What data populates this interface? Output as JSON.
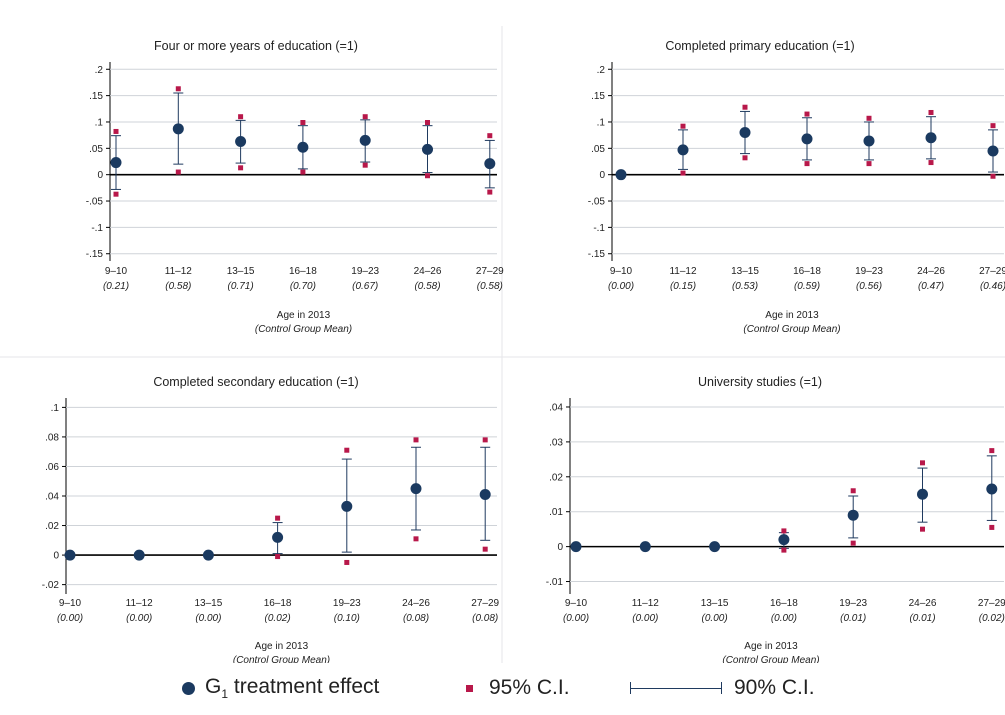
{
  "chart_data": [
    {
      "type": "scatter",
      "title": "Four or more years of education (=1)",
      "xlabel": "Age in 2013",
      "xsublabel": "(Control Group Mean)",
      "categories": [
        "9–10",
        "11–12",
        "13–15",
        "16–18",
        "19–23",
        "24–26",
        "27–29"
      ],
      "control_means": [
        "(0.21)",
        "(0.58)",
        "(0.71)",
        "(0.70)",
        "(0.67)",
        "(0.58)",
        "(0.58)"
      ],
      "ylim": [
        -0.16,
        0.21
      ],
      "yticks": [
        0.2,
        0.15,
        0.1,
        0.05,
        0,
        -0.05,
        -0.1,
        -0.15
      ],
      "ytick_labels": [
        ".2",
        ".15",
        ".1",
        ".05",
        "0",
        "-.05",
        "-.1",
        "-.15"
      ],
      "grid": true,
      "series": [
        {
          "name": "G1 treatment effect",
          "values": [
            0.023,
            0.087,
            0.063,
            0.052,
            0.065,
            0.048,
            0.021
          ]
        },
        {
          "name": "95% C.I.",
          "lower": [
            -0.037,
            0.005,
            0.013,
            0.005,
            0.018,
            -0.002,
            -0.033
          ],
          "upper": [
            0.082,
            0.163,
            0.11,
            0.099,
            0.11,
            0.099,
            0.074
          ]
        },
        {
          "name": "90% C.I.",
          "lower": [
            -0.028,
            0.02,
            0.022,
            0.011,
            0.024,
            0.004,
            -0.025
          ],
          "upper": [
            0.074,
            0.155,
            0.103,
            0.093,
            0.104,
            0.093,
            0.065
          ]
        }
      ]
    },
    {
      "type": "scatter",
      "title": "Completed primary education (=1)",
      "xlabel": "Age in 2013",
      "xsublabel": "(Control Group Mean)",
      "categories": [
        "9–10",
        "11–12",
        "13–15",
        "16–18",
        "19–23",
        "24–26",
        "27–29"
      ],
      "control_means": [
        "(0.00)",
        "(0.15)",
        "(0.53)",
        "(0.59)",
        "(0.56)",
        "(0.47)",
        "(0.46)"
      ],
      "ylim": [
        -0.16,
        0.21
      ],
      "yticks": [
        0.2,
        0.15,
        0.1,
        0.05,
        0,
        -0.05,
        -0.1,
        -0.15
      ],
      "ytick_labels": [
        ".2",
        ".15",
        ".1",
        ".05",
        "0",
        "-.05",
        "-.1",
        "-.15"
      ],
      "grid": true,
      "series": [
        {
          "name": "G1 treatment effect",
          "values": [
            0.0,
            0.047,
            0.08,
            0.068,
            0.064,
            0.07,
            0.045
          ]
        },
        {
          "name": "95% C.I.",
          "lower": [
            0.0,
            0.003,
            0.032,
            0.021,
            0.021,
            0.023,
            -0.003
          ],
          "upper": [
            0.0,
            0.092,
            0.128,
            0.115,
            0.107,
            0.118,
            0.093
          ]
        },
        {
          "name": "90% C.I.",
          "lower": [
            0.0,
            0.01,
            0.04,
            0.028,
            0.028,
            0.03,
            0.005
          ],
          "upper": [
            0.0,
            0.085,
            0.12,
            0.108,
            0.1,
            0.11,
            0.085
          ]
        }
      ]
    },
    {
      "type": "scatter",
      "title": "Completed secondary education (=1)",
      "xlabel": "Age in 2013",
      "xsublabel": "(Control Group Mean)",
      "categories": [
        "9–10",
        "11–12",
        "13–15",
        "16–18",
        "19–23",
        "24–26",
        "27–29"
      ],
      "control_means": [
        "(0.00)",
        "(0.00)",
        "(0.00)",
        "(0.02)",
        "(0.10)",
        "(0.08)",
        "(0.08)"
      ],
      "ylim": [
        -0.025,
        0.105
      ],
      "yticks": [
        0.1,
        0.08,
        0.06,
        0.04,
        0.02,
        0,
        -0.02
      ],
      "ytick_labels": [
        ".1",
        ".08",
        ".06",
        ".04",
        ".02",
        "0",
        "-.02"
      ],
      "grid": true,
      "series": [
        {
          "name": "G1 treatment effect",
          "values": [
            0.0,
            0.0,
            0.0,
            0.012,
            0.033,
            0.045,
            0.041
          ]
        },
        {
          "name": "95% C.I.",
          "lower": [
            0.0,
            0.0,
            0.0,
            -0.001,
            -0.005,
            0.011,
            0.004
          ],
          "upper": [
            0.0,
            0.0,
            0.0,
            0.025,
            0.071,
            0.078,
            0.078
          ]
        },
        {
          "name": "90% C.I.",
          "lower": [
            0.0,
            0.0,
            0.0,
            0.001,
            0.002,
            0.017,
            0.01
          ],
          "upper": [
            0.0,
            0.0,
            0.0,
            0.022,
            0.065,
            0.073,
            0.073
          ]
        }
      ]
    },
    {
      "type": "scatter",
      "title": "University studies (=1)",
      "xlabel": "Age in 2013",
      "xsublabel": "(Control Group Mean)",
      "categories": [
        "9–10",
        "11–12",
        "13–15",
        "16–18",
        "19–23",
        "24–26",
        "27–29"
      ],
      "control_means": [
        "(0.00)",
        "(0.00)",
        "(0.00)",
        "(0.00)",
        "(0.01)",
        "(0.01)",
        "(0.02)"
      ],
      "ylim": [
        -0.013,
        0.042
      ],
      "yticks": [
        0.04,
        0.03,
        0.02,
        0.01,
        0,
        -0.01
      ],
      "ytick_labels": [
        ".04",
        ".03",
        ".02",
        ".01",
        "0",
        "-.01"
      ],
      "grid": true,
      "series": [
        {
          "name": "G1 treatment effect",
          "values": [
            0.0,
            0.0,
            0.0,
            0.002,
            0.009,
            0.015,
            0.0165
          ]
        },
        {
          "name": "95% C.I.",
          "lower": [
            0.0,
            0.0,
            0.0,
            -0.001,
            0.001,
            0.005,
            0.0055
          ],
          "upper": [
            0.0,
            0.0,
            0.0,
            0.0045,
            0.016,
            0.024,
            0.0275
          ]
        },
        {
          "name": "90% C.I.",
          "lower": [
            0.0,
            0.0,
            0.0,
            -0.0005,
            0.0025,
            0.007,
            0.0075
          ],
          "upper": [
            0.0,
            0.0,
            0.0,
            0.004,
            0.0145,
            0.0225,
            0.026
          ]
        }
      ]
    }
  ],
  "legend": {
    "placement": "bottom",
    "point_label_main": "G",
    "point_label_sub": "1",
    "point_label_rest": " treatment effect",
    "ci95_label": "95% C.I.",
    "ci90_label": "90% C.I."
  },
  "colors": {
    "point": "#1b3a60",
    "ci95": "#b8184a",
    "ci90": "#1f3a5f",
    "grid": "#cfd3d8"
  }
}
